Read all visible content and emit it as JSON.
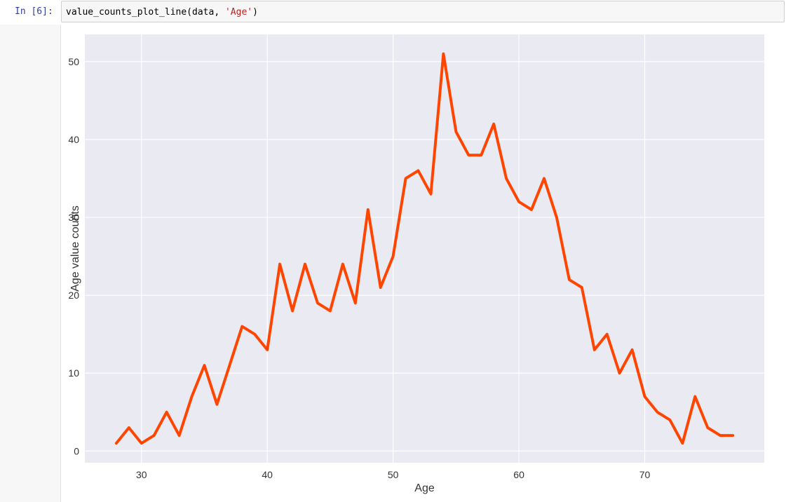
{
  "cell": {
    "prompt": "In [6]:",
    "code_prefix": "value_counts_plot_line(data, ",
    "code_string": "'Age'",
    "code_suffix": ")"
  },
  "colors": {
    "plot_background": "#eaeaf2",
    "grid": "#ffffff",
    "line": "#ff4500",
    "code_string": "#ba2121",
    "prompt": "#303f9f"
  },
  "chart_data": {
    "type": "line",
    "title": "",
    "xlabel": "Age",
    "ylabel": "Age value counts",
    "xlim": [
      25.5,
      79.5
    ],
    "ylim": [
      -1.5,
      53.5
    ],
    "xticks": [
      30,
      40,
      50,
      60,
      70
    ],
    "yticks": [
      0,
      10,
      20,
      30,
      40,
      50
    ],
    "grid": true,
    "series": [
      {
        "x": [
          28,
          29,
          30,
          31,
          32,
          33,
          34,
          35,
          36,
          37,
          38,
          39,
          40,
          41,
          42,
          43,
          44,
          45,
          46,
          47,
          48,
          49,
          50,
          51,
          52,
          53,
          54,
          55,
          56,
          57,
          58,
          59,
          60,
          61,
          62,
          63,
          64,
          65,
          66,
          67,
          68,
          69,
          70,
          71,
          72,
          73,
          74,
          75,
          76,
          77
        ],
        "values": [
          1,
          3,
          1,
          2,
          5,
          2,
          7,
          11,
          6,
          11,
          16,
          15,
          13,
          24,
          18,
          24,
          19,
          18,
          24,
          19,
          31,
          21,
          25,
          35,
          36,
          33,
          51,
          41,
          38,
          38,
          42,
          35,
          32,
          31,
          35,
          30,
          22,
          21,
          13,
          15,
          10,
          13,
          7,
          5,
          4,
          1,
          7,
          3,
          2,
          2
        ]
      }
    ]
  }
}
